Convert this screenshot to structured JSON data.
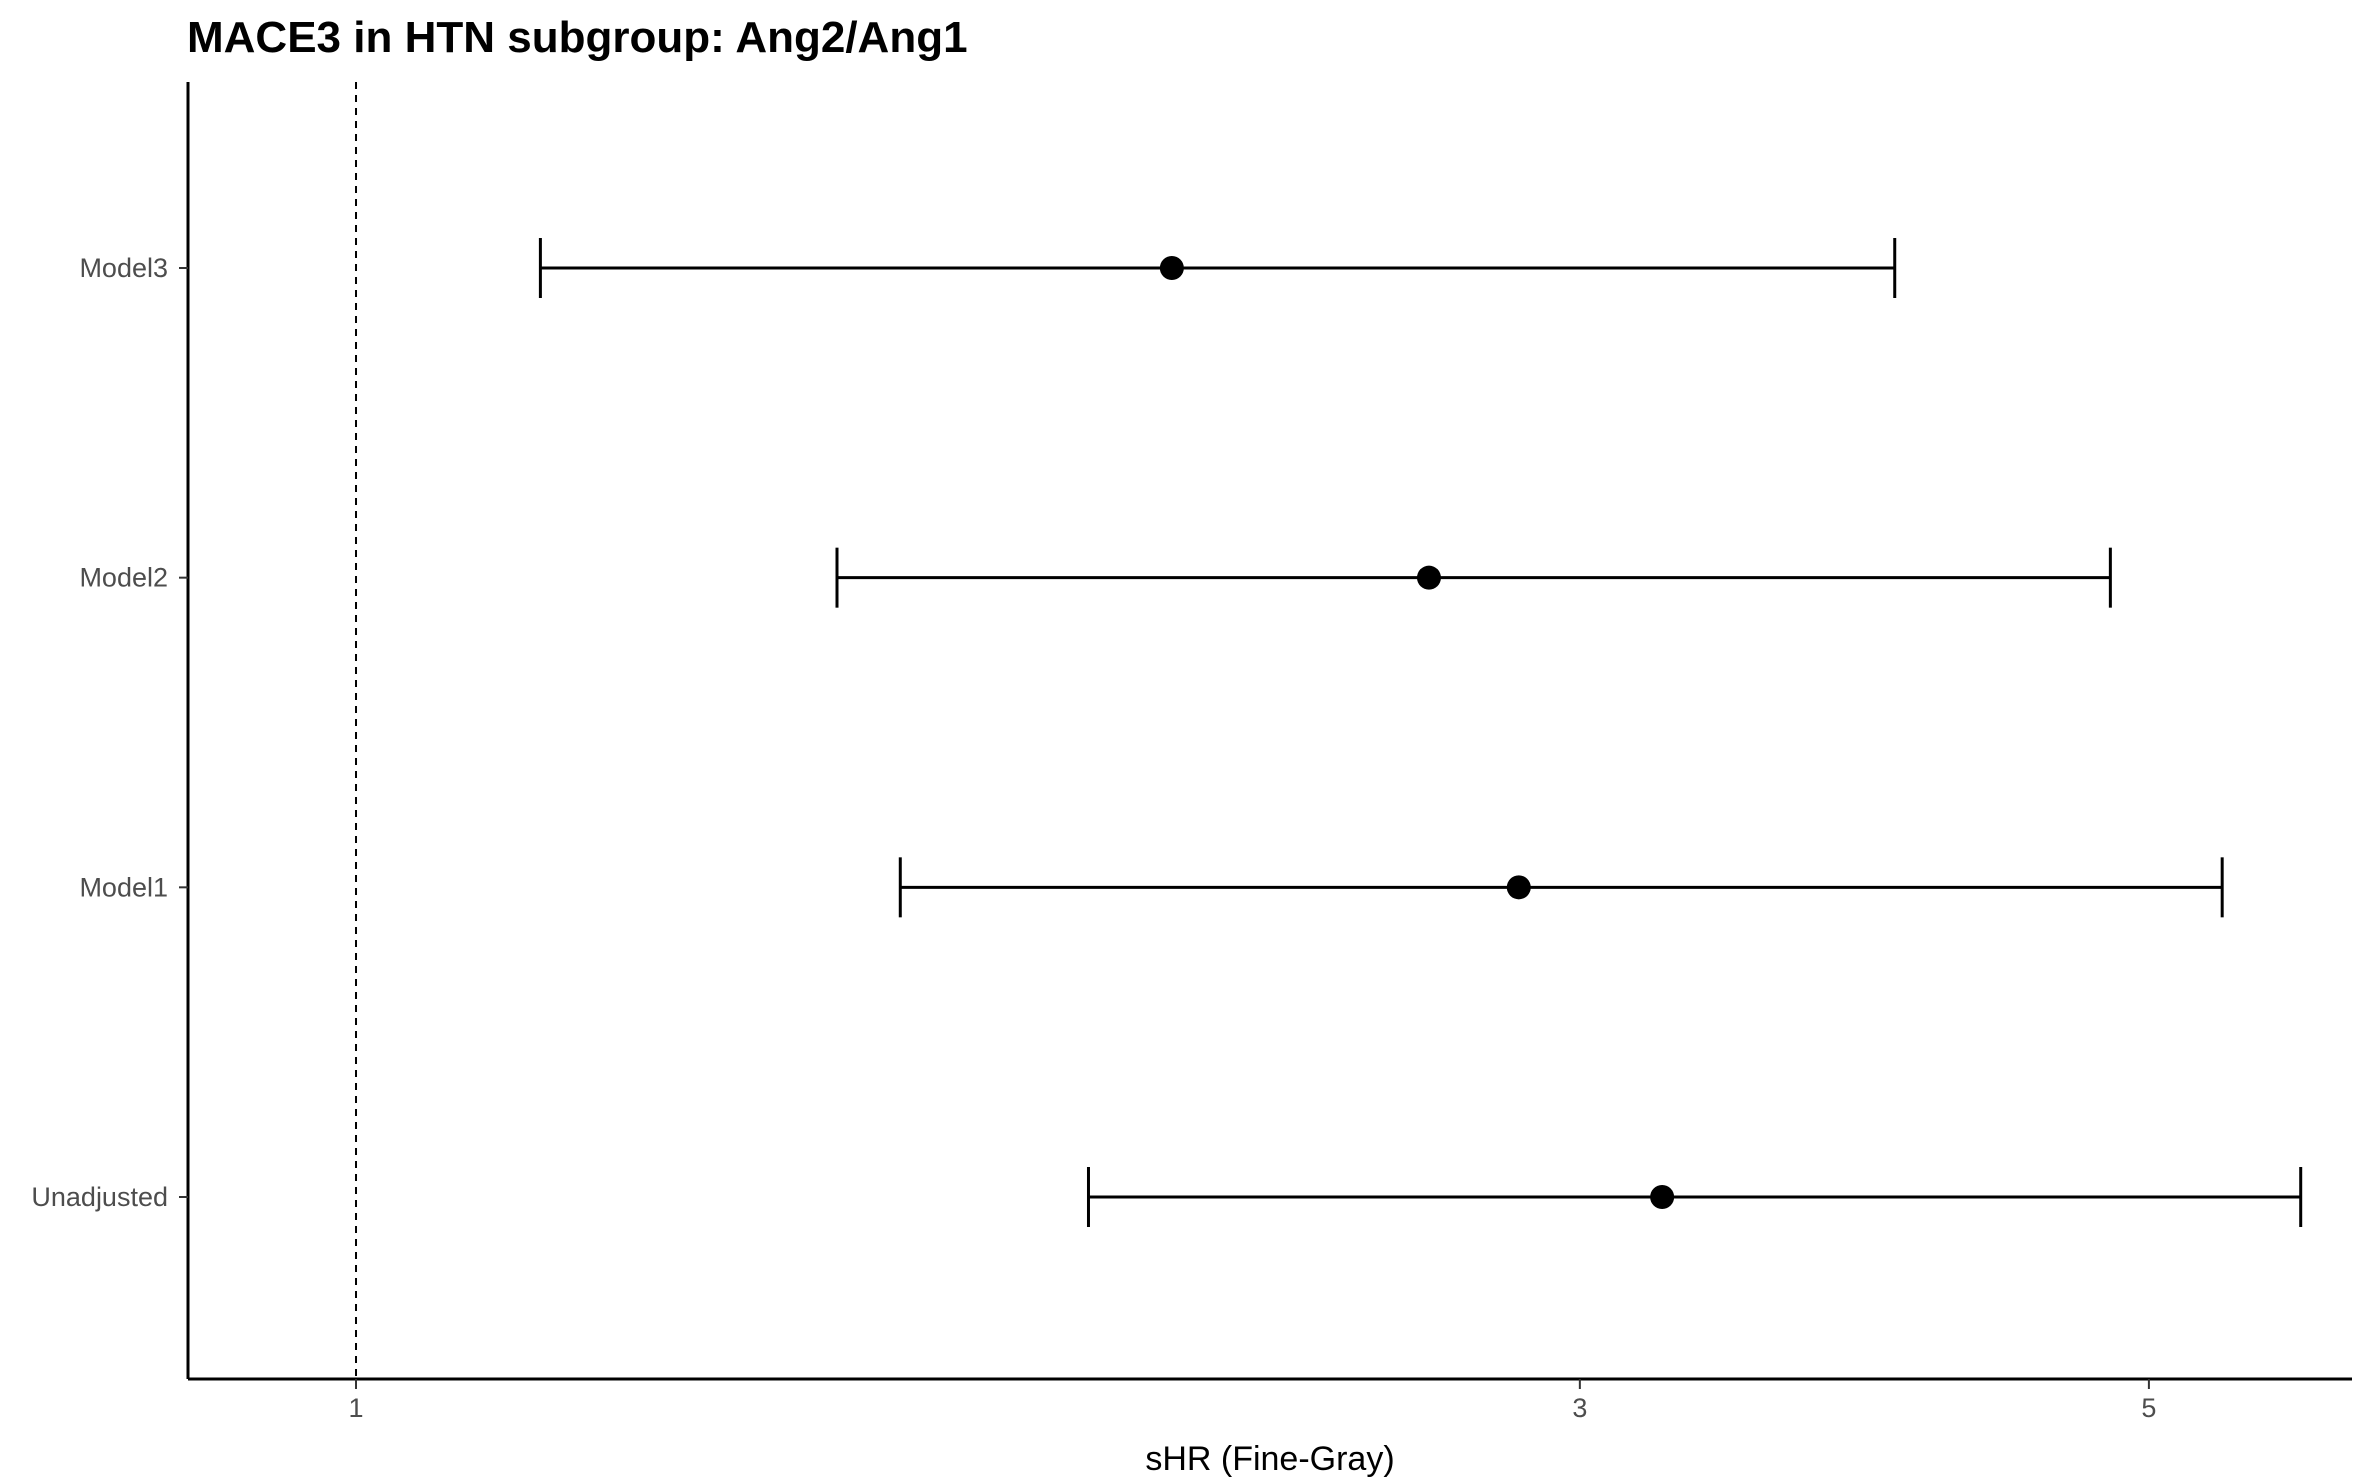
{
  "chart_data": {
    "type": "forest",
    "title": "MACE3 in HTN subgroup: Ang2/Ang1",
    "xlabel": "sHR (Fine-Gray)",
    "ylabel": "",
    "xscale": "log",
    "xlim": [
      0.86,
      6.0
    ],
    "x_ticks": [
      1,
      3,
      5
    ],
    "x_tick_labels": [
      "1",
      "3",
      "5"
    ],
    "reference_line": 1,
    "reference_line_style": "dashed",
    "grid": false,
    "legend": "none",
    "rows": [
      {
        "label": "Model3",
        "estimate": 2.08,
        "lower": 1.18,
        "upper": 3.98
      },
      {
        "label": "Model2",
        "estimate": 2.62,
        "lower": 1.54,
        "upper": 4.83
      },
      {
        "label": "Model1",
        "estimate": 2.84,
        "lower": 1.63,
        "upper": 5.34
      },
      {
        "label": "Unadjusted",
        "estimate": 3.23,
        "lower": 1.93,
        "upper": 5.73
      }
    ],
    "colors": {
      "marks": "#000000",
      "tick_text": "#4d4d4d",
      "axis": "#000000"
    }
  }
}
